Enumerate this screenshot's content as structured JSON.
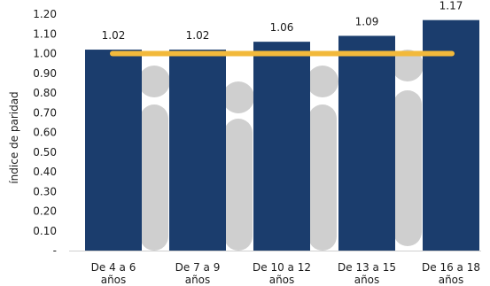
{
  "chart_data": {
    "type": "bar",
    "ylabel": "índice de paridad",
    "categories": [
      [
        "De 4 a 6",
        "años"
      ],
      [
        "De 7 a 9",
        "años"
      ],
      [
        "De 10 a 12",
        "años"
      ],
      [
        "De 13 a 15",
        "años"
      ],
      [
        "De 16 a 18",
        "años"
      ]
    ],
    "values": [
      1.02,
      1.02,
      1.06,
      1.09,
      1.17
    ],
    "value_labels": [
      "1.02",
      "1.02",
      "1.06",
      "1.09",
      "1.17"
    ],
    "reference_line": 1.0,
    "ylim": [
      0,
      1.2
    ],
    "yticks": [
      {
        "value": 0.0,
        "label": "-"
      },
      {
        "value": 0.1,
        "label": "0.10"
      },
      {
        "value": 0.2,
        "label": "0.20"
      },
      {
        "value": 0.3,
        "label": "0.30"
      },
      {
        "value": 0.4,
        "label": "0.40"
      },
      {
        "value": 0.5,
        "label": "0.50"
      },
      {
        "value": 0.6,
        "label": "0.60"
      },
      {
        "value": 0.7,
        "label": "0.70"
      },
      {
        "value": 0.8,
        "label": "0.80"
      },
      {
        "value": 0.9,
        "label": "0.90"
      },
      {
        "value": 1.0,
        "label": "1.00"
      },
      {
        "value": 1.1,
        "label": "1.10"
      },
      {
        "value": 1.2,
        "label": "1.20"
      }
    ],
    "grid": false,
    "colors": {
      "bar": "#1b3d6d",
      "reference_line": "#f2b93b",
      "watermark": "#cfcfcf"
    }
  }
}
